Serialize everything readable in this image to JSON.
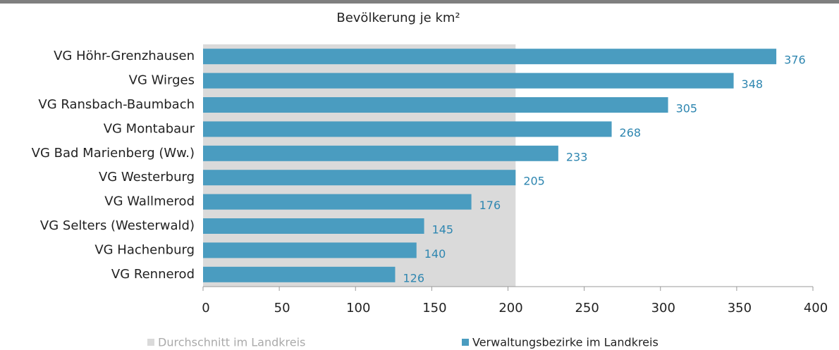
{
  "chart_data": {
    "type": "barh",
    "title": "Bevölkerung je km²",
    "categories": [
      "VG Höhr-Grenzhausen",
      "VG Wirges",
      "VG Ransbach-Baumbach",
      "VG Montabaur",
      "VG Bad Marienberg (Ww.)",
      "VG Westerburg",
      "VG Wallmerod",
      "VG Selters (Westerwald)",
      "VG Hachenburg",
      "VG Rennerod"
    ],
    "series": [
      {
        "name": "Verwaltungsbezirke im Landkreis",
        "color": "#4a9cc0",
        "values": [
          376,
          348,
          305,
          268,
          233,
          205,
          176,
          145,
          140,
          126
        ]
      }
    ],
    "average": {
      "name": "Durchschnitt im Landkreis",
      "color": "#dadada",
      "value": 205
    },
    "xlim": [
      0,
      400
    ],
    "xticks": [
      0,
      50,
      100,
      150,
      200,
      250,
      300,
      350,
      400
    ],
    "value_color": "#2e86b0"
  }
}
